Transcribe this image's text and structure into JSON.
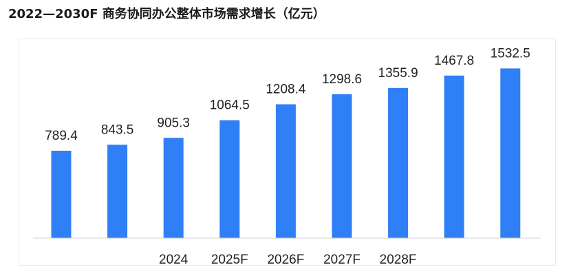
{
  "title": "2022—2030F 商务协同办公整体市场需求增长（亿元）",
  "chart_data": {
    "type": "bar",
    "title": "2022—2030F 商务协同办公整体市场需求增长（亿元）",
    "categories": [
      "",
      "",
      "2024",
      "2025F",
      "2026F",
      "2027F",
      "2028F",
      "",
      ""
    ],
    "values": [
      789.4,
      843.5,
      905.3,
      1064.5,
      1208.4,
      1298.6,
      1355.9,
      1467.8,
      1532.5
    ],
    "value_labels": [
      "789.4",
      "843.5",
      "905.3",
      "1064.5",
      "1208.4",
      "1298.6",
      "1355.9",
      "1467.8",
      "1532.5"
    ],
    "color": "#2f7ff6",
    "ylim": [
      0,
      2150
    ],
    "xlabel": "",
    "ylabel": "",
    "grid": false,
    "legend": "none"
  }
}
